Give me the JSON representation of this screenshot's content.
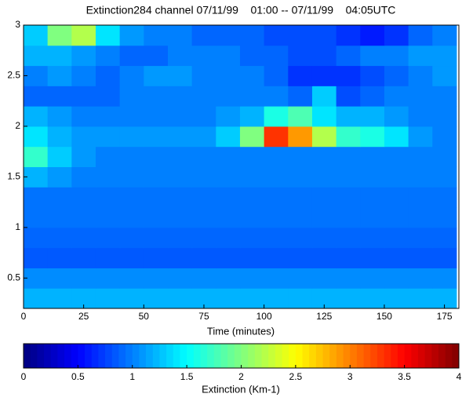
{
  "chart_data": {
    "type": "heatmap",
    "title": "Extinction284 channel 07/11/99    01:00 -- 07/11/99    04:05UTC",
    "xlabel": "Time (minutes)",
    "colorbar_label": "Extinction (Km-1)",
    "x": [
      5,
      15,
      25,
      35,
      45,
      55,
      65,
      75,
      85,
      95,
      105,
      115,
      125,
      135,
      145,
      155,
      165,
      175
    ],
    "y": [
      0.3,
      0.5,
      0.7,
      0.9,
      1.1,
      1.3,
      1.5,
      1.7,
      1.9,
      2.1,
      2.3,
      2.5,
      2.7,
      2.9
    ],
    "z": [
      [
        1.2,
        1.2,
        1.2,
        1.2,
        1.2,
        1.2,
        1.2,
        1.2,
        1.2,
        1.2,
        1.2,
        1.2,
        1.2,
        1.2,
        1.2,
        1.2,
        1.2,
        1.2
      ],
      [
        1.05,
        1.05,
        1.05,
        1.05,
        1.05,
        1.05,
        1.05,
        1.05,
        1.05,
        1.05,
        1.05,
        1.05,
        1.05,
        1.05,
        1.05,
        1.05,
        1.05,
        1.05
      ],
      [
        0.85,
        0.85,
        0.85,
        0.85,
        0.85,
        0.85,
        0.85,
        0.85,
        0.85,
        0.85,
        0.85,
        0.85,
        0.85,
        0.85,
        0.85,
        0.85,
        0.85,
        0.85
      ],
      [
        0.9,
        0.9,
        0.9,
        0.9,
        0.9,
        0.9,
        0.9,
        0.9,
        0.9,
        0.9,
        0.9,
        0.9,
        0.9,
        0.9,
        0.9,
        0.9,
        0.9,
        0.9
      ],
      [
        0.95,
        0.95,
        0.95,
        0.95,
        0.95,
        0.95,
        0.95,
        0.95,
        0.95,
        0.95,
        0.95,
        0.95,
        0.95,
        0.95,
        0.95,
        0.95,
        0.95,
        0.95
      ],
      [
        0.95,
        0.95,
        0.95,
        0.95,
        0.95,
        0.95,
        0.95,
        0.95,
        0.95,
        0.95,
        0.95,
        0.95,
        0.95,
        0.95,
        0.95,
        0.95,
        0.95,
        0.95
      ],
      [
        1.2,
        1.1,
        1.0,
        1.0,
        1.0,
        1.0,
        1.0,
        1.0,
        1.0,
        1.0,
        1.0,
        1.0,
        1.0,
        1.0,
        1.0,
        1.0,
        1.0,
        1.0
      ],
      [
        1.7,
        1.3,
        1.1,
        1.0,
        1.0,
        1.0,
        1.0,
        1.0,
        1.0,
        1.0,
        1.0,
        1.0,
        1.0,
        1.0,
        1.0,
        1.0,
        1.0,
        1.0
      ],
      [
        1.4,
        1.2,
        1.1,
        1.1,
        1.1,
        1.1,
        1.1,
        1.1,
        1.3,
        2.0,
        3.3,
        2.9,
        2.2,
        1.7,
        1.6,
        1.4,
        1.1,
        1.0
      ],
      [
        1.2,
        1.1,
        1.0,
        1.0,
        1.0,
        1.0,
        1.0,
        1.0,
        1.1,
        1.2,
        1.6,
        1.8,
        1.4,
        1.2,
        1.2,
        1.1,
        1.0,
        1.0
      ],
      [
        0.9,
        0.9,
        0.9,
        0.9,
        1.0,
        1.0,
        1.0,
        1.0,
        1.0,
        1.0,
        1.0,
        0.9,
        1.3,
        0.8,
        0.9,
        1.0,
        1.0,
        1.0
      ],
      [
        1.0,
        1.1,
        1.0,
        0.9,
        1.0,
        1.1,
        1.1,
        1.0,
        1.0,
        1.0,
        0.9,
        0.7,
        0.7,
        0.7,
        0.8,
        0.9,
        1.0,
        1.1
      ],
      [
        1.2,
        1.2,
        1.1,
        1.0,
        0.9,
        0.9,
        1.0,
        1.0,
        1.0,
        0.9,
        0.9,
        0.8,
        0.8,
        0.9,
        1.0,
        1.0,
        1.1,
        1.1
      ],
      [
        1.3,
        2.0,
        2.2,
        1.4,
        1.1,
        1.0,
        1.0,
        0.9,
        0.9,
        0.9,
        0.8,
        0.8,
        0.8,
        0.7,
        0.6,
        0.7,
        0.9,
        1.0
      ]
    ],
    "xlim": [
      0,
      181
    ],
    "xticks": [
      0,
      25,
      50,
      75,
      100,
      125,
      150,
      175
    ],
    "ylim": [
      0.2,
      3
    ],
    "yticks": [
      0.5,
      1,
      1.5,
      2,
      2.5,
      3
    ],
    "colormap": "jet",
    "clim": [
      0,
      4
    ],
    "cticks": [
      0,
      0.5,
      1,
      1.5,
      2,
      2.5,
      3,
      3.5,
      4
    ]
  }
}
